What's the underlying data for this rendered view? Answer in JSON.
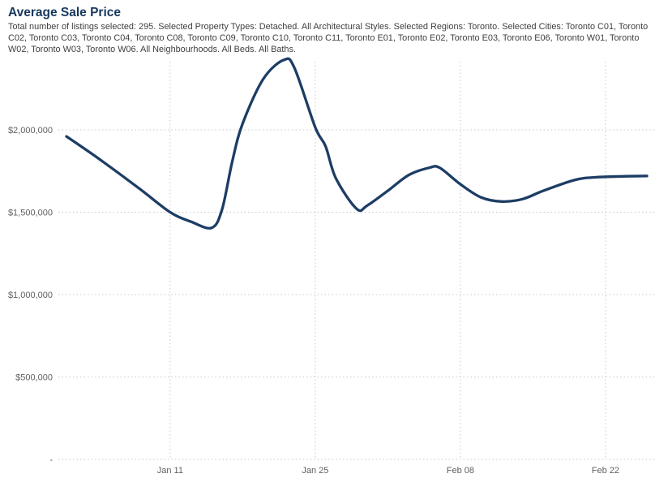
{
  "header": {
    "title": "Average Sale Price",
    "subtitle": "Total number of listings selected: 295. Selected Property Types: Detached. All Architectural Styles. Selected Regions: Toronto. Selected Cities: Toronto C01, Toronto C02, Toronto C03, Toronto C04, Toronto C08, Toronto C09, Toronto C10, Toronto C11, Toronto E01, Toronto E02, Toronto E03, Toronto E06, Toronto W01, Toronto W02, Toronto W03, Toronto W06. All Neighbourhoods. All Beds. All Baths."
  },
  "colors": {
    "title": "#17375e",
    "subtitle": "#3f3f3f",
    "line": "#1d3d65",
    "grid": "#c9c9c9",
    "tick_label": "#5f5f5f",
    "background": "#ffffff"
  },
  "chart_data": {
    "type": "line",
    "title": "Average Sale Price",
    "xlabel": "",
    "ylabel": "",
    "legend": "none",
    "grid": "dotted",
    "x_axis": {
      "start_date": "Jan 01",
      "end_date": "Feb 26",
      "ticks": [
        {
          "label": "Jan 11",
          "day": 10
        },
        {
          "label": "Jan 25",
          "day": 24
        },
        {
          "label": "Feb 08",
          "day": 38
        },
        {
          "label": "Feb 22",
          "day": 52
        }
      ]
    },
    "y_axis": {
      "range": [
        0,
        2430000
      ],
      "ticks": [
        {
          "label": "$2,000,000",
          "value": 2000000
        },
        {
          "label": "$1,500,000",
          "value": 1500000
        },
        {
          "label": "$1,000,000",
          "value": 1000000
        },
        {
          "label": "$500,000",
          "value": 500000
        },
        {
          "label": "-",
          "value": 0
        }
      ]
    },
    "series": [
      {
        "name": "Average Sale Price",
        "points": [
          {
            "date": "Jan 01",
            "day": 0,
            "value": 1960000
          },
          {
            "date": "Jan 04",
            "day": 3,
            "value": 1830000
          },
          {
            "date": "Jan 08",
            "day": 7,
            "value": 1645000
          },
          {
            "date": "Jan 11",
            "day": 10,
            "value": 1500000
          },
          {
            "date": "Jan 13",
            "day": 12,
            "value": 1443000
          },
          {
            "date": "Jan 15",
            "day": 14,
            "value": 1405000
          },
          {
            "date": "Jan 16",
            "day": 15,
            "value": 1515000
          },
          {
            "date": "Jan 17",
            "day": 16,
            "value": 1810000
          },
          {
            "date": "Jan 18",
            "day": 17,
            "value": 2040000
          },
          {
            "date": "Jan 20",
            "day": 19,
            "value": 2310000
          },
          {
            "date": "Jan 22",
            "day": 21,
            "value": 2425000
          },
          {
            "date": "Jan 23",
            "day": 22,
            "value": 2375000
          },
          {
            "date": "Jan 25",
            "day": 24,
            "value": 2015000
          },
          {
            "date": "Jan 26",
            "day": 25,
            "value": 1900000
          },
          {
            "date": "Jan 27",
            "day": 26,
            "value": 1705000
          },
          {
            "date": "Jan 29",
            "day": 28,
            "value": 1520000
          },
          {
            "date": "Jan 30",
            "day": 29,
            "value": 1540000
          },
          {
            "date": "Feb 01",
            "day": 31,
            "value": 1630000
          },
          {
            "date": "Feb 03",
            "day": 33,
            "value": 1725000
          },
          {
            "date": "Feb 05",
            "day": 35,
            "value": 1770000
          },
          {
            "date": "Feb 06",
            "day": 36,
            "value": 1770000
          },
          {
            "date": "Feb 08",
            "day": 38,
            "value": 1670000
          },
          {
            "date": "Feb 10",
            "day": 40,
            "value": 1590000
          },
          {
            "date": "Feb 12",
            "day": 42,
            "value": 1565000
          },
          {
            "date": "Feb 14",
            "day": 44,
            "value": 1580000
          },
          {
            "date": "Feb 16",
            "day": 46,
            "value": 1630000
          },
          {
            "date": "Feb 19",
            "day": 49,
            "value": 1695000
          },
          {
            "date": "Feb 21",
            "day": 51,
            "value": 1712000
          },
          {
            "date": "Feb 24",
            "day": 54,
            "value": 1718000
          },
          {
            "date": "Feb 26",
            "day": 56,
            "value": 1720000
          }
        ]
      }
    ]
  }
}
